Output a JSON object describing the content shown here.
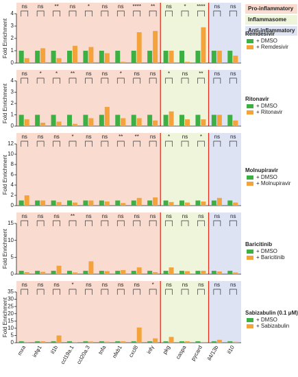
{
  "groups": [
    {
      "name": "Pro-inflammatory",
      "color": "#f9dccf",
      "count": 9
    },
    {
      "name": "Inflammasome",
      "color": "#eff5da",
      "count": 3
    },
    {
      "name": "Anti-inflammatory",
      "color": "#dde3f3",
      "count": 2
    }
  ],
  "chart_data": [
    {
      "type": "bar",
      "title": "Remdesivir",
      "y_label": "Fold Enrichment",
      "categories": [
        null,
        null,
        null,
        null,
        null,
        null,
        null,
        null,
        null,
        null,
        null,
        null,
        null,
        null
      ],
      "ylim": [
        0,
        4
      ],
      "yticks": [
        0,
        1,
        2,
        3,
        4
      ],
      "annotations": [
        "ns",
        "ns",
        "**",
        "ns",
        "*",
        "ns",
        "ns",
        "****",
        "**",
        "ns",
        "*",
        "****",
        "ns",
        "ns"
      ],
      "series": [
        {
          "name": "+ DMSO",
          "color": "#3cb043",
          "values": [
            1,
            1,
            1,
            1,
            1,
            1,
            1,
            1,
            1,
            1,
            1,
            1,
            1,
            1
          ]
        },
        {
          "name": "+ Remdesivir",
          "color": "#f4a23c",
          "values": [
            0.4,
            1.2,
            0.4,
            1.4,
            1.3,
            0.8,
            0.1,
            2.5,
            2.6,
            1.0,
            0.1,
            2.9,
            1.0,
            0.6
          ]
        }
      ]
    },
    {
      "type": "bar",
      "title": "Ritonavir",
      "y_label": "Fold Enrichment",
      "categories": [
        null,
        null,
        null,
        null,
        null,
        null,
        null,
        null,
        null,
        null,
        null,
        null,
        null,
        null
      ],
      "ylim": [
        0,
        4
      ],
      "yticks": [
        0,
        1,
        2,
        3,
        4
      ],
      "annotations": [
        "ns",
        "*",
        "*",
        "**",
        "ns",
        "ns",
        "*",
        "ns",
        "ns",
        "*",
        "ns",
        "**",
        "ns",
        "ns"
      ],
      "series": [
        {
          "name": "+ DMSO",
          "color": "#3cb043",
          "values": [
            1,
            1,
            1,
            1,
            1,
            1,
            1,
            1,
            1,
            1,
            1,
            1,
            1,
            1
          ]
        },
        {
          "name": "+ Ritonavir",
          "color": "#f4a23c",
          "values": [
            0.6,
            0.3,
            0.4,
            0.2,
            0.7,
            1.7,
            0.7,
            0.7,
            0.5,
            1.3,
            0.6,
            0.6,
            1.0,
            0.5
          ]
        }
      ]
    },
    {
      "type": "bar",
      "title": "Molnupiravir",
      "y_label": "Fold Enrichment",
      "categories": [
        null,
        null,
        null,
        null,
        null,
        null,
        null,
        null,
        null,
        null,
        null,
        null,
        null,
        null
      ],
      "ylim": [
        0,
        12
      ],
      "yticks": [
        0,
        2,
        4,
        6,
        8,
        10,
        12
      ],
      "annotations": [
        "ns",
        "ns",
        "ns",
        "*",
        "ns",
        "ns",
        "**",
        "**",
        "ns",
        "*",
        "ns",
        "*",
        "ns",
        "ns"
      ],
      "series": [
        {
          "name": "+ DMSO",
          "color": "#3cb043",
          "values": [
            1,
            1,
            1,
            1,
            1,
            1,
            1,
            1,
            1,
            1,
            1,
            1,
            1,
            1
          ]
        },
        {
          "name": "+ Molnupiravir",
          "color": "#f4a23c",
          "values": [
            2,
            1,
            0.7,
            0.6,
            1,
            0.8,
            0.5,
            1.5,
            1.6,
            0.7,
            0.6,
            0.8,
            1.5,
            0.6
          ]
        }
      ]
    },
    {
      "type": "bar",
      "title": "Baricitinib",
      "y_label": "Fold Enrichment",
      "categories": [
        null,
        null,
        null,
        null,
        null,
        null,
        null,
        null,
        null,
        null,
        null,
        null,
        null,
        null
      ],
      "ylim": [
        0,
        15
      ],
      "yticks": [
        0,
        5,
        10,
        15
      ],
      "annotations": [
        "ns",
        "ns",
        "ns",
        "**",
        "ns",
        "ns",
        "ns",
        "ns",
        "ns",
        "ns",
        "ns",
        "ns",
        "ns",
        "ns"
      ],
      "series": [
        {
          "name": "+ DMSO",
          "color": "#3cb043",
          "values": [
            1,
            1,
            1,
            1,
            1,
            1,
            1,
            1,
            1,
            1,
            1,
            1,
            1,
            1
          ]
        },
        {
          "name": "+ Baricitinib",
          "color": "#f4a23c",
          "values": [
            0.6,
            0.7,
            2.5,
            0.5,
            3.8,
            0.9,
            1.2,
            2,
            0.6,
            2,
            0.9,
            1,
            0.8,
            0.5
          ]
        }
      ]
    },
    {
      "type": "bar",
      "title": "Sabizabulin (0.1 μM)",
      "y_label": "Fold Enrichment",
      "categories": [
        "mxa",
        "infφ1",
        "il1b",
        "ccl19a.1",
        "ccl20a.3",
        "tnfa",
        "nfκb1",
        "cxcl8",
        "infγ",
        "pkg",
        "caspa",
        "pycard",
        "il4/13b",
        "il10"
      ],
      "ylim": [
        0,
        35
      ],
      "yticks": [
        0,
        5,
        10,
        15,
        20,
        25,
        30,
        35
      ],
      "annotations": [
        "ns",
        "ns",
        "ns",
        "*",
        "ns",
        "ns",
        "ns",
        "ns",
        "*",
        "ns",
        "ns",
        "ns",
        "ns",
        "ns"
      ],
      "series": [
        {
          "name": "+ DMSO",
          "color": "#3cb043",
          "values": [
            1,
            1,
            1,
            1,
            1,
            1,
            1,
            1,
            1,
            1,
            1,
            1,
            1,
            1
          ]
        },
        {
          "name": "+ Sabizabulin",
          "color": "#f4a23c",
          "values": [
            0.5,
            1,
            5,
            0.4,
            0.8,
            0.7,
            1,
            10.5,
            3,
            4,
            1,
            0.5,
            2,
            0.6
          ]
        }
      ]
    }
  ]
}
